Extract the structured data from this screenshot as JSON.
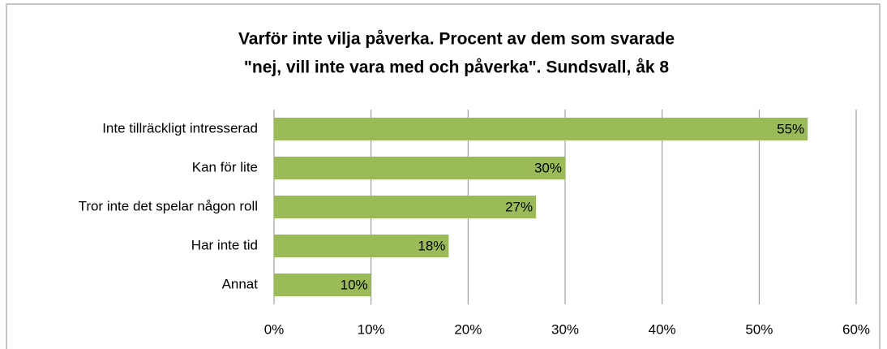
{
  "chart_data": {
    "type": "bar",
    "orientation": "horizontal",
    "title": [
      "Varför inte vilja påverka. Procent av dem som svarade",
      "\"nej, vill inte vara med och påverka\". Sundsvall, åk 8"
    ],
    "categories": [
      "Inte tillräckligt intresserad",
      "Kan för lite",
      "Tror inte det spelar någon roll",
      "Har inte tid",
      "Annat"
    ],
    "values": [
      55,
      30,
      27,
      18,
      10
    ],
    "value_labels": [
      "55%",
      "30%",
      "27%",
      "18%",
      "10%"
    ],
    "color": "#9bbb59",
    "xlim": [
      0,
      60
    ],
    "xticks": [
      {
        "value": 0,
        "label": "0%"
      },
      {
        "value": 10,
        "label": "10%"
      },
      {
        "value": 20,
        "label": "20%"
      },
      {
        "value": 30,
        "label": "30%"
      },
      {
        "value": 40,
        "label": "40%"
      },
      {
        "value": 50,
        "label": "50%"
      },
      {
        "value": 60,
        "label": "60%"
      }
    ],
    "grid": true
  }
}
